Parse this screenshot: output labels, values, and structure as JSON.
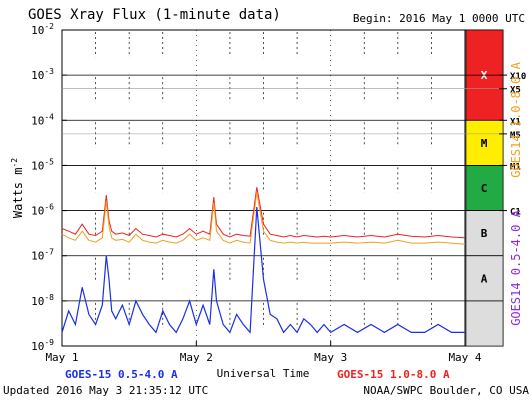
{
  "chart_data": {
    "type": "line",
    "title": "GOES Xray Flux (1-minute data)",
    "begin": "Begin:  2016 May 1 0000 UTC",
    "ylabel": "Watts m",
    "ylabel_sup": "-2",
    "xlabel": "Universal Time",
    "yscale": "log",
    "ylim": [
      1e-09,
      0.01
    ],
    "y_ticks": [
      {
        "base": "10",
        "exp": "-2"
      },
      {
        "base": "10",
        "exp": "-3"
      },
      {
        "base": "10",
        "exp": "-4"
      },
      {
        "base": "10",
        "exp": "-5"
      },
      {
        "base": "10",
        "exp": "-6"
      },
      {
        "base": "10",
        "exp": "-7"
      },
      {
        "base": "10",
        "exp": "-8"
      },
      {
        "base": "10",
        "exp": "-9"
      }
    ],
    "x_ticks": [
      "May 1",
      "May 2",
      "May 3",
      "May 4"
    ],
    "xlim": [
      "2016-05-01 00:00",
      "2016-05-04 00:00"
    ],
    "flare_classes": [
      "X",
      "M",
      "C",
      "B",
      "A"
    ],
    "flare_class_colors": [
      "#ee2222",
      "#ffee00",
      "#22aa44",
      "#dddddd",
      "#dddddd"
    ],
    "flare_markers": [
      "X10",
      "X5",
      "X1",
      "M5",
      "M1",
      "C1"
    ],
    "right_axis_labels": [
      "GOES14 0.5-4.0 A",
      "GOES14 1.0-8.0 A"
    ],
    "series": [
      {
        "name": "GOES-15 0.5-4.0 A",
        "color": "#1a2ee8",
        "x_days": [
          0.0,
          0.05,
          0.1,
          0.15,
          0.2,
          0.25,
          0.3,
          0.33,
          0.35,
          0.37,
          0.4,
          0.45,
          0.5,
          0.55,
          0.6,
          0.65,
          0.7,
          0.75,
          0.8,
          0.85,
          0.9,
          0.95,
          1.0,
          1.05,
          1.1,
          1.13,
          1.15,
          1.2,
          1.25,
          1.3,
          1.35,
          1.4,
          1.45,
          1.5,
          1.55,
          1.6,
          1.65,
          1.7,
          1.75,
          1.8,
          1.85,
          1.9,
          1.95,
          2.0,
          2.1,
          2.2,
          2.3,
          2.4,
          2.5,
          2.6,
          2.7,
          2.8,
          2.9,
          3.0
        ],
        "y": [
          2e-09,
          6e-09,
          3e-09,
          2e-08,
          5e-09,
          3e-09,
          8e-09,
          1e-07,
          3e-08,
          6e-09,
          4e-09,
          8e-09,
          3e-09,
          1e-08,
          5e-09,
          3e-09,
          2e-09,
          6e-09,
          3e-09,
          2e-09,
          4e-09,
          1e-08,
          3e-09,
          8e-09,
          3e-09,
          5e-08,
          1e-08,
          3e-09,
          2e-09,
          5e-09,
          3e-09,
          2e-09,
          1.2e-06,
          3e-08,
          5e-09,
          4e-09,
          2e-09,
          3e-09,
          2e-09,
          4e-09,
          3e-09,
          2e-09,
          3e-09,
          2e-09,
          3e-09,
          2e-09,
          3e-09,
          2e-09,
          3e-09,
          2e-09,
          2e-09,
          3e-09,
          2e-09,
          2e-09
        ]
      },
      {
        "name": "GOES-15 1.0-8.0 A",
        "color": "#ee2222",
        "x_days": [
          0.0,
          0.05,
          0.1,
          0.15,
          0.2,
          0.25,
          0.3,
          0.33,
          0.35,
          0.37,
          0.4,
          0.45,
          0.5,
          0.55,
          0.6,
          0.65,
          0.7,
          0.75,
          0.8,
          0.85,
          0.9,
          0.95,
          1.0,
          1.05,
          1.1,
          1.13,
          1.15,
          1.2,
          1.25,
          1.3,
          1.35,
          1.4,
          1.45,
          1.5,
          1.55,
          1.6,
          1.65,
          1.7,
          1.75,
          1.8,
          1.85,
          1.9,
          1.95,
          2.0,
          2.1,
          2.2,
          2.3,
          2.4,
          2.5,
          2.6,
          2.7,
          2.8,
          2.9,
          3.0
        ],
        "y": [
          4e-07,
          3.5e-07,
          3e-07,
          5e-07,
          3e-07,
          2.8e-07,
          3.5e-07,
          2.2e-06,
          6e-07,
          3.5e-07,
          3e-07,
          3.2e-07,
          2.8e-07,
          4e-07,
          3e-07,
          2.8e-07,
          2.6e-07,
          3e-07,
          2.8e-07,
          2.6e-07,
          3e-07,
          4e-07,
          3e-07,
          3.5e-07,
          3e-07,
          2e-06,
          5e-07,
          3e-07,
          2.6e-07,
          3e-07,
          2.8e-07,
          2.7e-07,
          3.3e-06,
          5e-07,
          3e-07,
          2.8e-07,
          2.6e-07,
          2.8e-07,
          2.6e-07,
          2.8e-07,
          2.7e-07,
          2.6e-07,
          2.7e-07,
          2.6e-07,
          2.8e-07,
          2.6e-07,
          2.8e-07,
          2.6e-07,
          3e-07,
          2.7e-07,
          2.6e-07,
          2.8e-07,
          2.6e-07,
          2.5e-07
        ]
      },
      {
        "name": "GOES14 1.0-8.0 A",
        "color": "#f0a020",
        "x_days": [
          0.0,
          0.05,
          0.1,
          0.15,
          0.2,
          0.25,
          0.3,
          0.33,
          0.35,
          0.37,
          0.4,
          0.45,
          0.5,
          0.55,
          0.6,
          0.65,
          0.7,
          0.75,
          0.8,
          0.85,
          0.9,
          0.95,
          1.0,
          1.05,
          1.1,
          1.13,
          1.15,
          1.2,
          1.25,
          1.3,
          1.35,
          1.4,
          1.45,
          1.5,
          1.55,
          1.6,
          1.65,
          1.7,
          1.75,
          1.8,
          1.85,
          1.9,
          1.95,
          2.0,
          2.1,
          2.2,
          2.3,
          2.4,
          2.5,
          2.6,
          2.7,
          2.8,
          2.9,
          3.0
        ],
        "y": [
          3e-07,
          2.5e-07,
          2.2e-07,
          3.5e-07,
          2.2e-07,
          2e-07,
          2.5e-07,
          1.6e-06,
          4.5e-07,
          2.5e-07,
          2.2e-07,
          2.3e-07,
          2e-07,
          3e-07,
          2.2e-07,
          2e-07,
          1.9e-07,
          2.2e-07,
          2e-07,
          1.9e-07,
          2.2e-07,
          3e-07,
          2.2e-07,
          2.5e-07,
          2.2e-07,
          1.5e-06,
          3.5e-07,
          2.2e-07,
          1.9e-07,
          2.2e-07,
          2e-07,
          1.9e-07,
          2.5e-06,
          3.5e-07,
          2.2e-07,
          2e-07,
          1.9e-07,
          2e-07,
          1.9e-07,
          2e-07,
          1.9e-07,
          1.9e-07,
          1.9e-07,
          1.9e-07,
          2e-07,
          1.9e-07,
          2e-07,
          1.9e-07,
          2.2e-07,
          1.9e-07,
          1.9e-07,
          2e-07,
          1.9e-07,
          1.8e-07
        ]
      }
    ],
    "legend_left": "GOES-15 0.5-4.0 A",
    "legend_right": "GOES-15 1.0-8.0 A",
    "grid": true
  },
  "footer": {
    "updated": "Updated 2016 May  3 21:35:12 UTC",
    "credit": "NOAA/SWPC Boulder, CO USA"
  },
  "colors": {
    "legend_left": "#1a2ee8",
    "legend_right": "#ee2222",
    "goes14_short": "#8a2be2",
    "goes14_long": "#f0a020"
  }
}
